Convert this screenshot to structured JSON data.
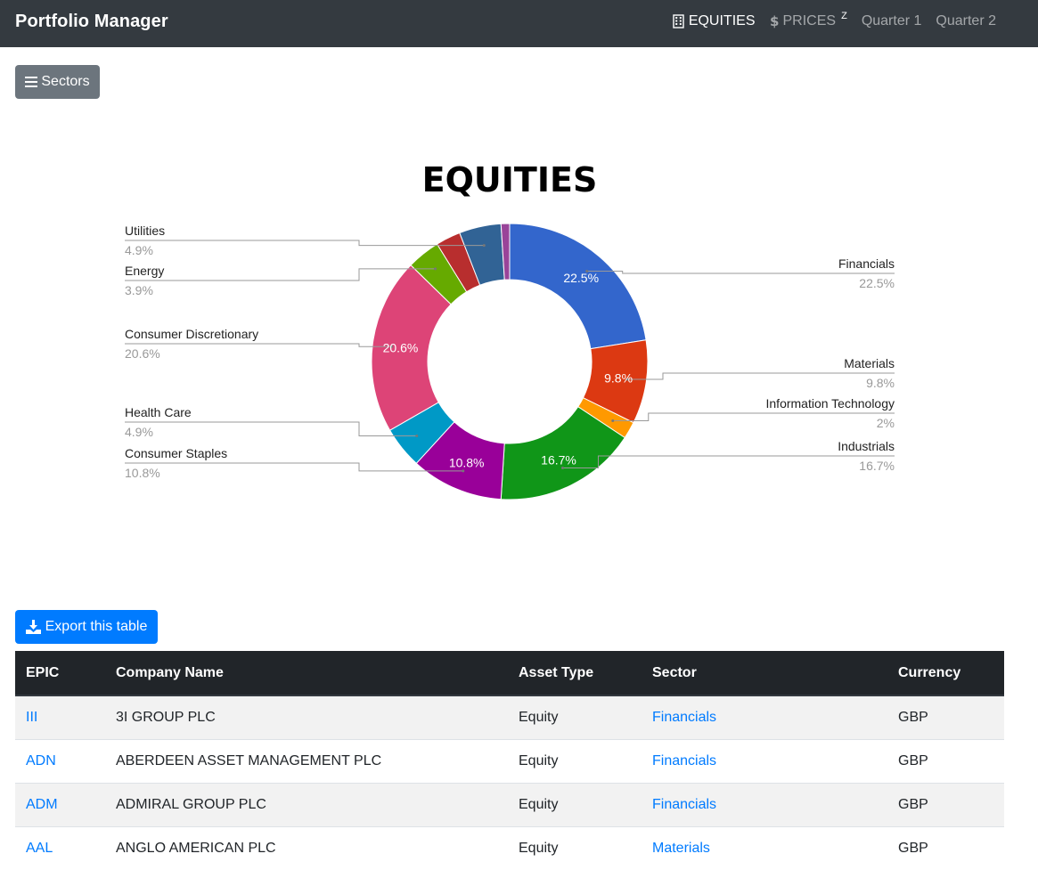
{
  "app": {
    "title": "Portfolio Manager"
  },
  "nav": {
    "items": [
      {
        "label": "EQUITIES",
        "icon": "building-icon",
        "active": true
      },
      {
        "label": "PRICES",
        "icon": "dollar-icon",
        "active": false,
        "sup": "Z"
      },
      {
        "label": "Quarter 1",
        "active": false
      },
      {
        "label": "Quarter 2",
        "active": false
      }
    ]
  },
  "sectors_button": {
    "label": "Sectors",
    "icon": "bars-icon"
  },
  "chart_data": {
    "type": "pie",
    "title": "EQUITIES",
    "donut": true,
    "slices": [
      {
        "label": "Financials",
        "value": 22.5,
        "value_label": "22.5%",
        "color": "#3366cc",
        "inner_label": "22.5%"
      },
      {
        "label": "Materials",
        "value": 9.8,
        "value_label": "9.8%",
        "color": "#dc3912",
        "inner_label": "9.8%"
      },
      {
        "label": "Information Technology",
        "value": 2,
        "value_label": "2%",
        "color": "#ff9900",
        "inner_label": ""
      },
      {
        "label": "Industrials",
        "value": 16.7,
        "value_label": "16.7%",
        "color": "#109618",
        "inner_label": "16.7%"
      },
      {
        "label": "Consumer Staples",
        "value": 10.8,
        "value_label": "10.8%",
        "color": "#990099",
        "inner_label": "10.8%"
      },
      {
        "label": "Health Care",
        "value": 4.9,
        "value_label": "4.9%",
        "color": "#0099c6",
        "inner_label": ""
      },
      {
        "label": "Consumer Discretionary",
        "value": 20.6,
        "value_label": "20.6%",
        "color": "#dd4477",
        "inner_label": "20.6%"
      },
      {
        "label": "Energy",
        "value": 3.9,
        "value_label": "3.9%",
        "color": "#66aa00",
        "inner_label": ""
      },
      {
        "label": "",
        "value": 2.9,
        "value_label": "",
        "color": "#b82e2e",
        "inner_label": ""
      },
      {
        "label": "Utilities",
        "value": 4.9,
        "value_label": "4.9%",
        "color": "#316395",
        "inner_label": ""
      },
      {
        "label": "",
        "value": 1.0,
        "value_label": "",
        "color": "#994499",
        "inner_label": ""
      }
    ],
    "legend": "labeled callouts"
  },
  "export_button": {
    "label": "Export this table",
    "icon": "download-icon"
  },
  "table": {
    "columns": [
      "EPIC",
      "Company Name",
      "Asset Type",
      "Sector",
      "Currency"
    ],
    "rows": [
      {
        "epic": "III",
        "company": "3I GROUP PLC",
        "asset_type": "Equity",
        "sector": "Financials",
        "currency": "GBP"
      },
      {
        "epic": "ADN",
        "company": "ABERDEEN ASSET MANAGEMENT PLC",
        "asset_type": "Equity",
        "sector": "Financials",
        "currency": "GBP"
      },
      {
        "epic": "ADM",
        "company": "ADMIRAL GROUP PLC",
        "asset_type": "Equity",
        "sector": "Financials",
        "currency": "GBP"
      },
      {
        "epic": "AAL",
        "company": "ANGLO AMERICAN PLC",
        "asset_type": "Equity",
        "sector": "Materials",
        "currency": "GBP"
      }
    ]
  }
}
